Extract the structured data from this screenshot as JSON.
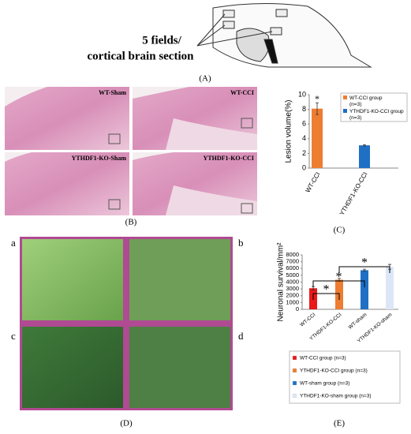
{
  "figure": {
    "panel_a": {
      "text_line1": "5 fields/",
      "text_line2": "cortical brain section",
      "label": "(A)"
    },
    "panel_b": {
      "images": [
        "WT-Sham",
        "WT-CCI",
        "YTHDF1-KO-Sham",
        "YTHDF1-KO-CCI"
      ],
      "label": "(B)"
    },
    "panel_c": {
      "label": "(C)"
    },
    "panel_d": {
      "images": [
        "a",
        "b",
        "c",
        "d"
      ],
      "label": "(D)"
    },
    "panel_e": {
      "label": "(E)"
    }
  },
  "chart_data": [
    {
      "type": "bar",
      "y_label": "Lesion volume(%)",
      "categories": [
        "WT-CCI",
        "YTHDF1-KO-CCI"
      ],
      "series": [
        {
          "name": "WT-CCI group (n=3)",
          "color": "#ed7d31"
        },
        {
          "name": "YTHDF1-KO-CCI group (n=3)",
          "color": "#1f6fc5"
        }
      ],
      "values": [
        8.1,
        3.1
      ],
      "errors": [
        0.8,
        0.1
      ],
      "ylim": [
        0,
        10
      ],
      "yticks": [
        0,
        2,
        4,
        6,
        8,
        10
      ],
      "annotations": [
        "*"
      ]
    },
    {
      "type": "bar",
      "y_label": "Neuronal survival/mm²",
      "categories": [
        "WT-CCI",
        "YTHDF1-KO-CCI",
        "WT-sham",
        "YTHDF1-KO-sham"
      ],
      "series": [
        {
          "name": "WT-CCI group (n=3)",
          "color": "#e8191b"
        },
        {
          "name": "YTHDF1-KO-CCI group (n=3)",
          "color": "#ed7d31"
        },
        {
          "name": "WT-sham group (n=3)",
          "color": "#1f6fc5"
        },
        {
          "name": "YTHDF1-KO-sham group (n=3)",
          "color": "#dce6f7"
        }
      ],
      "values": [
        3100,
        4350,
        5750,
        6250
      ],
      "errors": [
        250,
        200,
        150,
        350
      ],
      "ylim": [
        0,
        8000
      ],
      "yticks": [
        0,
        1000,
        2000,
        3000,
        4000,
        5000,
        6000,
        7000,
        8000
      ],
      "annotations": [
        "*",
        "*",
        "*"
      ]
    }
  ]
}
